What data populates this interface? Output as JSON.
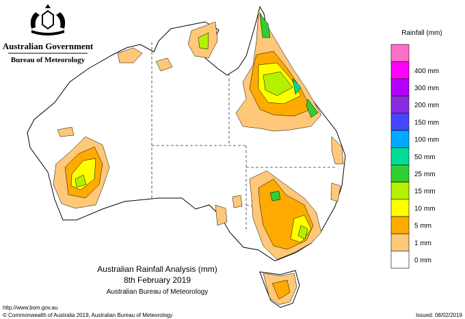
{
  "header": {
    "government": "Australian Government",
    "agency": "Bureau of Meteorology"
  },
  "legend": {
    "title": "Rainfall (mm)",
    "items": [
      {
        "color": "#ff6ec8"
      },
      {
        "label": "400 mm",
        "color": "#ff00ff"
      },
      {
        "label": "300 mm",
        "color": "#b400ff"
      },
      {
        "label": "200 mm",
        "color": "#8a2be2"
      },
      {
        "label": "150 mm",
        "color": "#4646ff"
      },
      {
        "label": "100 mm",
        "color": "#00aaff"
      },
      {
        "label": "50 mm",
        "color": "#00dc96"
      },
      {
        "label": "25 mm",
        "color": "#32cd32"
      },
      {
        "label": "15 mm",
        "color": "#b4f000"
      },
      {
        "label": "10 mm",
        "color": "#ffff00"
      },
      {
        "label": "5 mm",
        "color": "#ffaa00"
      },
      {
        "label": "1 mm",
        "color": "#ffc878"
      },
      {
        "label": "0 mm",
        "color": "#ffffff"
      }
    ]
  },
  "caption": {
    "title": "Australian Rainfall Analysis (mm)",
    "date": "8th February 2019",
    "source": "Australian Bureau of Meteorology"
  },
  "footer": {
    "url": "http://www.bom.gov.au",
    "copyright": "© Commonwealth of Australia 2019, Australian Bureau of Meteorology",
    "issued": "Issued: 08/02/2019"
  }
}
